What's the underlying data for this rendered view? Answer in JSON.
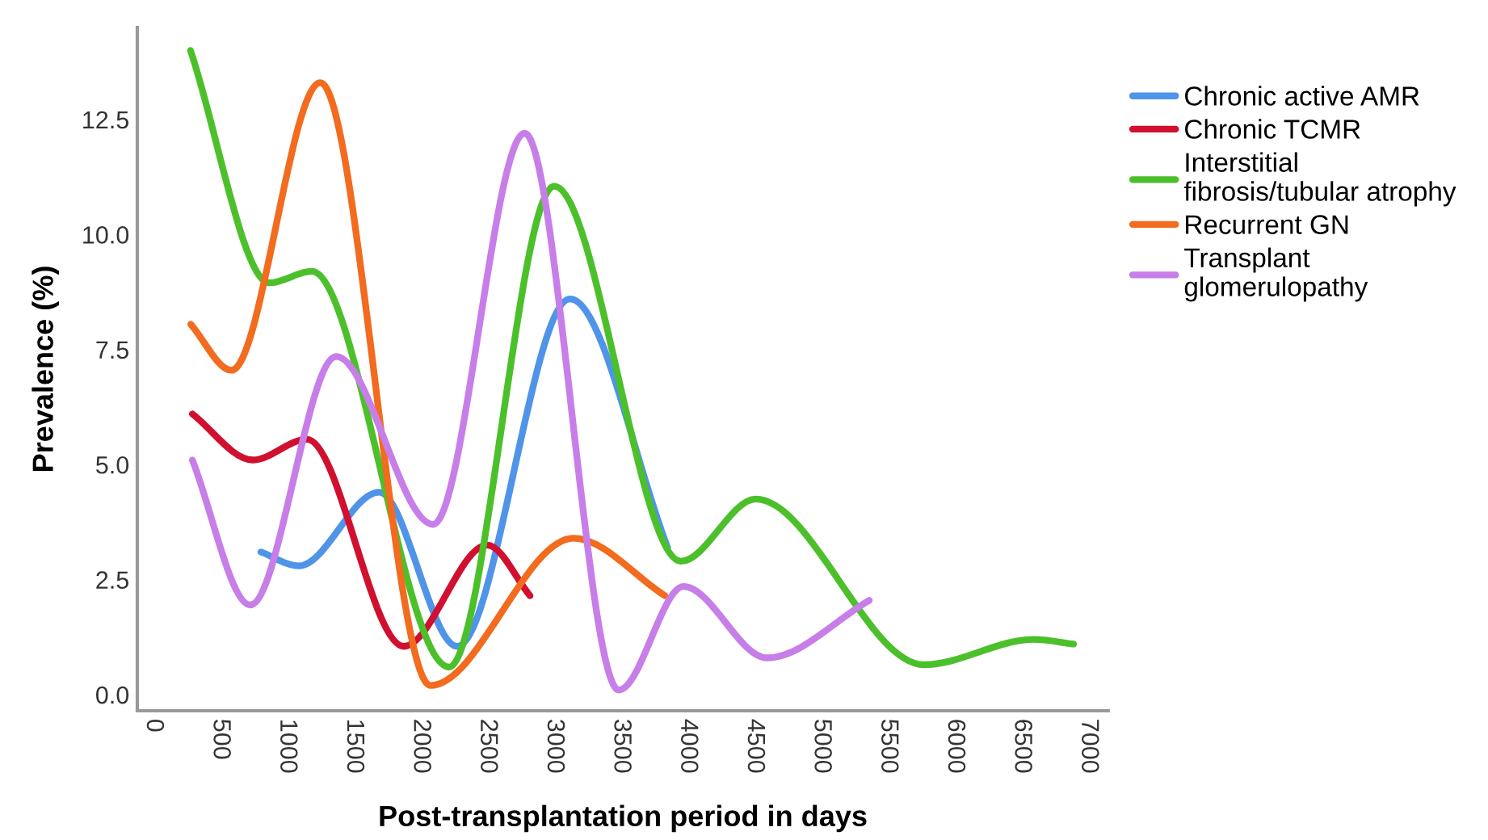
{
  "chart_data": {
    "type": "line",
    "xlabel": "Post-transplantation period in days",
    "ylabel": "Prevalence (%)",
    "xlim": [
      -120,
      7150
    ],
    "ylim": [
      -0.35,
      14.5
    ],
    "xticks": [
      0,
      500,
      1000,
      1500,
      2000,
      2500,
      3000,
      3500,
      4000,
      4500,
      5000,
      5500,
      6000,
      6500,
      7000
    ],
    "yticks": [
      {
        "value": 0,
        "label": "0.0"
      },
      {
        "value": 2.5,
        "label": "2.5"
      },
      {
        "value": 5,
        "label": "5.0"
      },
      {
        "value": 7.5,
        "label": "7.5"
      },
      {
        "value": 10,
        "label": "10.0"
      },
      {
        "value": 12.5,
        "label": "12.5"
      }
    ],
    "grid": false,
    "legend": "right",
    "marker": "none",
    "line_style": "solid",
    "series": [
      {
        "name": "Chronic active AMR",
        "color": "#4f94e8",
        "x": [
          805,
          1090,
          1690,
          2275,
          3120,
          3850
        ],
        "values": [
          3.1,
          2.8,
          4.4,
          1.05,
          8.6,
          3.2
        ]
      },
      {
        "name": "Chronic TCMR",
        "color": "#d0102e",
        "x": [
          292,
          745,
          1150,
          1875,
          2500,
          2820
        ],
        "values": [
          6.1,
          5.1,
          5.55,
          1.05,
          3.25,
          2.15
        ]
      },
      {
        "name": "Interstitial\nfibrosis/tubular atrophy",
        "color": "#4cc02b",
        "x": [
          278,
          870,
          1185,
          2215,
          3000,
          3950,
          4510,
          5770,
          6590,
          6890
        ],
        "values": [
          14.0,
          8.95,
          9.2,
          0.6,
          11.05,
          2.9,
          4.25,
          0.65,
          1.2,
          1.1
        ]
      },
      {
        "name": "Recurrent GN",
        "color": "#f26b1e",
        "x": [
          280,
          585,
          1250,
          2075,
          3145,
          3830
        ],
        "values": [
          8.05,
          7.05,
          13.3,
          0.2,
          3.4,
          2.15
        ]
      },
      {
        "name": "Transplant\nglomerulopathy",
        "color": "#c77ee8",
        "x": [
          292,
          725,
          1370,
          2095,
          2780,
          3485,
          3970,
          4595,
          5360
        ],
        "values": [
          5.1,
          1.95,
          7.35,
          3.7,
          12.2,
          0.1,
          2.35,
          0.8,
          2.05
        ]
      }
    ]
  }
}
